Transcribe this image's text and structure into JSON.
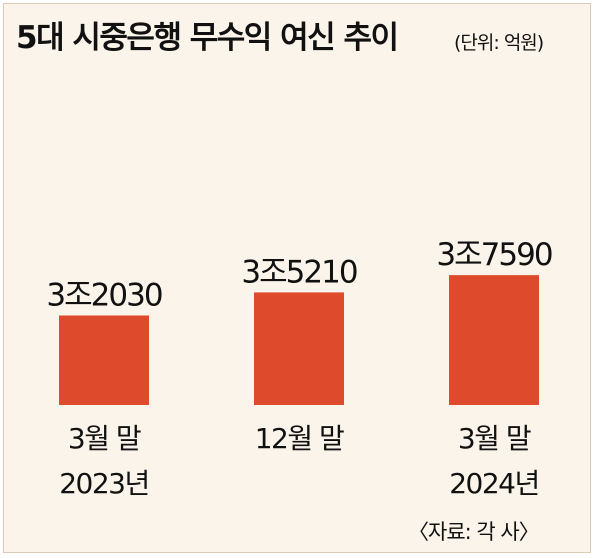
{
  "chart_data": {
    "type": "bar",
    "title": "5대 시중은행 무수익 여신 추이",
    "unit": "(단위: 억원)",
    "source": "〈자료: 각 사〉",
    "categories": [
      {
        "line1": "3월 말",
        "line2": "2023년"
      },
      {
        "line1": "12월 말",
        "line2": ""
      },
      {
        "line1": "3월 말",
        "line2": "2024년"
      }
    ],
    "values": [
      32030,
      35210,
      37590
    ],
    "value_labels": [
      "3조2030",
      "3조5210",
      "3조7590"
    ],
    "bar_color": "#dd4a2c",
    "grid": false
  }
}
